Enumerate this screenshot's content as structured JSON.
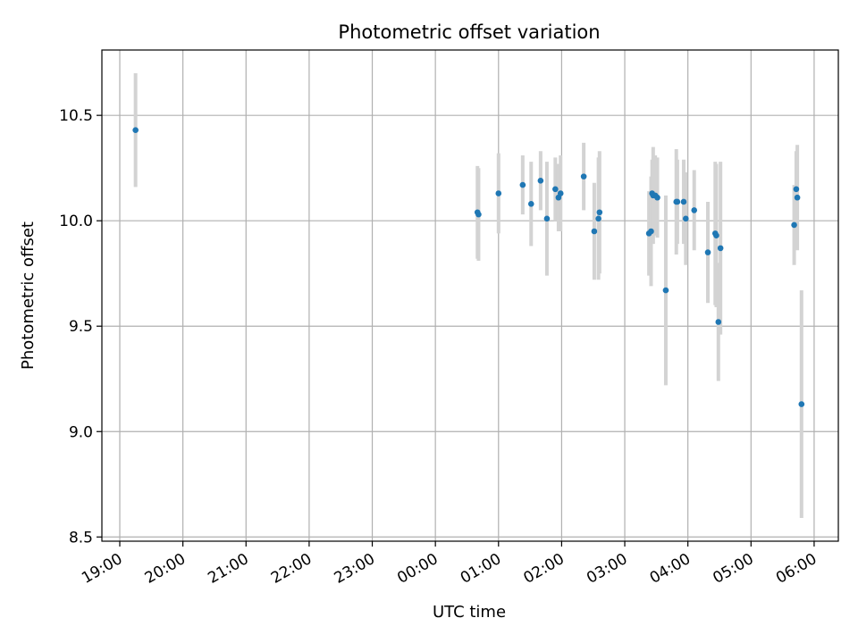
{
  "chart_data": {
    "type": "scatter",
    "title": "Photometric offset variation",
    "xlabel": "UTC time",
    "ylabel": "Photometric offset",
    "x_axis": {
      "kind": "time",
      "range": [
        "18:43",
        "06:23"
      ],
      "ticks": [
        "19:00",
        "20:00",
        "21:00",
        "22:00",
        "23:00",
        "00:00",
        "01:00",
        "02:00",
        "03:00",
        "04:00",
        "05:00",
        "06:00"
      ]
    },
    "y_axis": {
      "range": [
        8.48,
        10.81
      ],
      "ticks": [
        "8.5",
        "9.0",
        "9.5",
        "10.0",
        "10.5"
      ]
    },
    "grid": true,
    "legend": "none",
    "colors": {
      "marker": "#1f77b4",
      "errorbar": "#d3d3d3",
      "grid": "#b0b0b0"
    },
    "points": [
      {
        "time": "19:15",
        "y": 10.43,
        "err": 0.27
      },
      {
        "time": "00:40",
        "y": 10.04,
        "err": 0.22
      },
      {
        "time": "00:41",
        "y": 10.03,
        "err": 0.22
      },
      {
        "time": "01:00",
        "y": 10.13,
        "err": 0.19
      },
      {
        "time": "01:23",
        "y": 10.17,
        "err": 0.14
      },
      {
        "time": "01:31",
        "y": 10.08,
        "err": 0.2
      },
      {
        "time": "01:40",
        "y": 10.19,
        "err": 0.14
      },
      {
        "time": "01:46",
        "y": 10.01,
        "err": 0.27
      },
      {
        "time": "01:54",
        "y": 10.15,
        "err": 0.15
      },
      {
        "time": "01:57",
        "y": 10.11,
        "err": 0.16
      },
      {
        "time": "01:59",
        "y": 10.13,
        "err": 0.18
      },
      {
        "time": "02:21",
        "y": 10.21,
        "err": 0.16
      },
      {
        "time": "02:31",
        "y": 9.95,
        "err": 0.23
      },
      {
        "time": "02:35",
        "y": 10.01,
        "err": 0.29
      },
      {
        "time": "02:36",
        "y": 10.04,
        "err": 0.29
      },
      {
        "time": "03:23",
        "y": 9.94,
        "err": 0.2
      },
      {
        "time": "03:25",
        "y": 9.95,
        "err": 0.26
      },
      {
        "time": "03:26",
        "y": 10.13,
        "err": 0.16
      },
      {
        "time": "03:27",
        "y": 10.12,
        "err": 0.23
      },
      {
        "time": "03:29",
        "y": 10.12,
        "err": 0.19
      },
      {
        "time": "03:31",
        "y": 10.11,
        "err": 0.19
      },
      {
        "time": "03:39",
        "y": 9.67,
        "err": 0.45
      },
      {
        "time": "03:49",
        "y": 10.09,
        "err": 0.25
      },
      {
        "time": "03:50",
        "y": 10.09,
        "err": 0.2
      },
      {
        "time": "03:56",
        "y": 10.09,
        "err": 0.2
      },
      {
        "time": "03:58",
        "y": 10.01,
        "err": 0.22
      },
      {
        "time": "04:06",
        "y": 10.05,
        "err": 0.19
      },
      {
        "time": "04:19",
        "y": 9.85,
        "err": 0.24
      },
      {
        "time": "04:26",
        "y": 9.94,
        "err": 0.34
      },
      {
        "time": "04:27",
        "y": 9.93,
        "err": 0.34
      },
      {
        "time": "04:29",
        "y": 9.52,
        "err": 0.28
      },
      {
        "time": "04:31",
        "y": 9.87,
        "err": 0.41
      },
      {
        "time": "05:41",
        "y": 9.98,
        "err": 0.19
      },
      {
        "time": "05:43",
        "y": 10.15,
        "err": 0.18
      },
      {
        "time": "05:44",
        "y": 10.11,
        "err": 0.25
      },
      {
        "time": "05:48",
        "y": 9.13,
        "err": 0.54
      }
    ]
  }
}
